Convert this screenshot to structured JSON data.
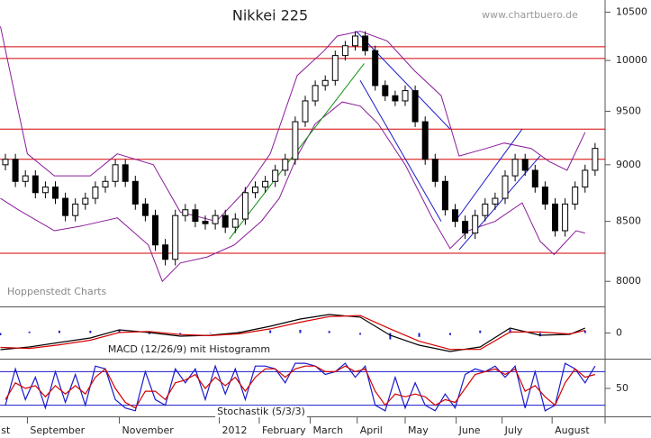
{
  "chart_data": [
    {
      "type": "candlestick",
      "title": "Nikkei 225",
      "annotations": {
        "source": "www.chartbuero.de",
        "credit": "Hoppenstedt Charts"
      },
      "x_labels": [
        {
          "value": -0.7,
          "label": "st"
        },
        {
          "value": 2.2,
          "label": "September"
        },
        {
          "value": 11.4,
          "label": "November"
        },
        {
          "value": 21.4,
          "label": "2012"
        },
        {
          "value": 25.4,
          "label": "February"
        },
        {
          "value": 30.5,
          "label": "March"
        },
        {
          "value": 35.2,
          "label": "April"
        },
        {
          "value": 40,
          "label": "May"
        },
        {
          "value": 45.1,
          "label": "June"
        },
        {
          "value": 49.7,
          "label": "July"
        },
        {
          "value": 54.7,
          "label": "August"
        }
      ],
      "open": [
        9000,
        9050,
        8850,
        8900,
        8750,
        8800,
        8700,
        8550,
        8650,
        8700,
        8800,
        8850,
        9000,
        8850,
        8650,
        8550,
        8300,
        8180,
        8550,
        8600,
        8500,
        8480,
        8550,
        8450,
        8520,
        8750,
        8800,
        8850,
        8950,
        9050,
        9400,
        9600,
        9750,
        9800,
        10050,
        10150,
        10250,
        10100,
        9750,
        9650,
        9600,
        9700,
        9400,
        9050,
        8850,
        8600,
        8500,
        8400,
        8550,
        8650,
        8700,
        8900,
        9050,
        8950,
        8800,
        8650,
        8420,
        8650,
        8800,
        8950
      ],
      "high": [
        9100,
        9100,
        8950,
        8950,
        8850,
        8850,
        8750,
        8700,
        8750,
        8850,
        8900,
        9050,
        9050,
        8900,
        8700,
        8600,
        8350,
        8600,
        8650,
        8650,
        8550,
        8600,
        8600,
        8570,
        8800,
        8850,
        8900,
        9000,
        9100,
        9450,
        9650,
        9800,
        9850,
        10100,
        10200,
        10300,
        10300,
        10150,
        9800,
        9700,
        9750,
        9750,
        9450,
        9100,
        8900,
        8650,
        8550,
        8600,
        8700,
        8750,
        8950,
        9100,
        9100,
        9000,
        8850,
        8700,
        8700,
        8850,
        9000,
        9200
      ],
      "low": [
        8950,
        8800,
        8800,
        8700,
        8700,
        8650,
        8500,
        8500,
        8600,
        8650,
        8750,
        8800,
        8800,
        8600,
        8500,
        8250,
        8130,
        8130,
        8500,
        8450,
        8430,
        8430,
        8400,
        8400,
        8470,
        8700,
        8750,
        8800,
        8900,
        9000,
        9350,
        9550,
        9700,
        9750,
        10000,
        10100,
        10050,
        9700,
        9600,
        9550,
        9550,
        9350,
        9000,
        8800,
        8550,
        8450,
        8350,
        8350,
        8500,
        8600,
        8650,
        8850,
        8900,
        8750,
        8600,
        8370,
        8370,
        8600,
        8750,
        8900
      ],
      "close": [
        9050,
        8850,
        8900,
        8750,
        8800,
        8700,
        8550,
        8650,
        8700,
        8800,
        8850,
        9000,
        8850,
        8650,
        8550,
        8300,
        8180,
        8550,
        8600,
        8500,
        8480,
        8550,
        8450,
        8520,
        8750,
        8800,
        8850,
        8950,
        9050,
        9400,
        9600,
        9750,
        9800,
        10050,
        10150,
        10250,
        10100,
        9750,
        9650,
        9600,
        9700,
        9400,
        9050,
        8850,
        8600,
        8500,
        8400,
        8550,
        8650,
        8700,
        8900,
        9050,
        8950,
        8800,
        8650,
        8420,
        8650,
        8800,
        8950,
        9150
      ],
      "ylim": [
        7800,
        10630
      ],
      "yticks": [
        8000,
        8500,
        9000,
        9500,
        10000,
        10500
      ],
      "log_scale": true,
      "hlines": {
        "color": "#d40000",
        "values": [
          10140,
          10020,
          9330,
          9050,
          8230
        ]
      },
      "bands": {
        "color": "#8a1c9a",
        "upper": {
          "x": [
            -0.5,
            2.2,
            4.9,
            8.5,
            11.2,
            14.8,
            17.5,
            21.1,
            23.8,
            26.5,
            29.2,
            31.9,
            33.2,
            35.5,
            38.2,
            40.9,
            43.6,
            45.4,
            48.1,
            49.9,
            52.6,
            54.4,
            56.2,
            58
          ],
          "values": [
            10350,
            9100,
            8900,
            8900,
            9100,
            9000,
            8580,
            8500,
            8750,
            9100,
            9850,
            10100,
            10250,
            10300,
            10200,
            9900,
            9650,
            9080,
            9150,
            9200,
            9150,
            9030,
            8950,
            9300
          ]
        },
        "lower": {
          "x": [
            -0.5,
            1.3,
            4.9,
            7.6,
            11.2,
            14.3,
            15.7,
            17.5,
            20.2,
            22.9,
            25.6,
            27.4,
            29.2,
            31,
            33.7,
            35.5,
            37.3,
            40,
            42.7,
            44.5,
            46.3,
            49,
            51.7,
            53.5,
            54.9,
            57.1,
            58
          ],
          "values": [
            8700,
            8600,
            8420,
            8460,
            8530,
            8300,
            8000,
            8150,
            8200,
            8300,
            8500,
            8700,
            9080,
            9380,
            9590,
            9550,
            9380,
            9000,
            8530,
            8270,
            8420,
            8500,
            8660,
            8330,
            8220,
            8420,
            8400
          ]
        }
      },
      "trend_lines": [
        {
          "color": "#1a1acc",
          "x": [
            35.1,
            44.5
          ],
          "values": [
            10300,
            9330
          ]
        },
        {
          "color": "#1a1acc",
          "x": [
            35.5,
            43.6
          ],
          "values": [
            9800,
            8500
          ]
        },
        {
          "color": "#1a1acc",
          "x": [
            45,
            51.7
          ],
          "values": [
            8500,
            9330
          ]
        },
        {
          "color": "#1a1acc",
          "x": [
            45.4,
            53.5
          ],
          "values": [
            8260,
            9080
          ]
        },
        {
          "color": "#109010",
          "x": [
            22.4,
            35.9
          ],
          "values": [
            8350,
            9970
          ]
        }
      ]
    },
    {
      "type": "macd",
      "title": "MACD (12/26/9) mit Histogramm",
      "x": [
        -0.5,
        2.4,
        5.4,
        8.5,
        11.4,
        14.4,
        17.5,
        20.5,
        23.4,
        26.5,
        29.5,
        32.4,
        35.5,
        38.5,
        41.4,
        44.5,
        47.5,
        50.5,
        53.5,
        56.5,
        58
      ],
      "series": [
        {
          "color": "#000000",
          "values": [
            -162,
            -136,
            -92,
            -48,
            31,
            4,
            -31,
            -22,
            4,
            66,
            136,
            180,
            154,
            -22,
            -118,
            -180,
            -136,
            48,
            -22,
            -13,
            48
          ]
        },
        {
          "color": "#d40000",
          "values": [
            -140,
            -150,
            -115,
            -70,
            5,
            15,
            -15,
            -25,
            -8,
            40,
            105,
            160,
            170,
            40,
            -80,
            -160,
            -160,
            10,
            10,
            -10,
            25
          ]
        }
      ],
      "histogram": {
        "color": "#1a1acc",
        "values": [
          -22,
          14,
          23,
          22,
          26,
          -11,
          -16,
          3,
          12,
          26,
          31,
          20,
          -16,
          -62,
          -38,
          -20,
          24,
          38,
          -32,
          -3,
          23
        ]
      },
      "ylim": [
        -250,
        250
      ],
      "yticks": [
        0
      ]
    },
    {
      "type": "line",
      "title": "Stochastik (5/3/3)",
      "x": [
        0,
        1,
        2,
        3,
        4,
        5,
        6,
        7,
        8,
        9,
        10,
        11,
        12,
        13,
        14,
        15,
        16,
        17,
        18,
        19,
        20,
        21,
        22,
        23,
        24,
        25,
        26,
        27,
        28,
        29,
        30,
        31,
        32,
        33,
        34,
        35,
        36,
        37,
        38,
        39,
        40,
        41,
        42,
        43,
        44,
        45,
        46,
        47,
        48,
        49,
        50,
        51,
        52,
        53,
        54,
        55,
        56,
        57,
        58,
        59
      ],
      "series": [
        {
          "color": "#1a1acc",
          "values": [
            20,
            85,
            30,
            70,
            15,
            80,
            25,
            75,
            20,
            90,
            85,
            30,
            15,
            10,
            80,
            30,
            20,
            85,
            60,
            85,
            30,
            90,
            40,
            85,
            30,
            90,
            90,
            85,
            60,
            95,
            95,
            90,
            75,
            80,
            95,
            70,
            90,
            20,
            10,
            70,
            15,
            60,
            20,
            10,
            40,
            15,
            75,
            85,
            80,
            90,
            70,
            90,
            15,
            80,
            10,
            20,
            95,
            85,
            60,
            90
          ]
        },
        {
          "color": "#d40000",
          "values": [
            30,
            60,
            50,
            55,
            35,
            55,
            40,
            55,
            40,
            70,
            85,
            50,
            25,
            15,
            45,
            45,
            30,
            60,
            65,
            75,
            50,
            70,
            55,
            70,
            45,
            70,
            85,
            85,
            70,
            85,
            90,
            90,
            80,
            80,
            90,
            80,
            85,
            45,
            20,
            40,
            35,
            40,
            35,
            20,
            30,
            25,
            50,
            75,
            80,
            85,
            75,
            85,
            45,
            55,
            35,
            20,
            60,
            85,
            70,
            75
          ]
        }
      ],
      "hlines": {
        "color": "#1a1acc",
        "values": [
          80,
          20
        ]
      },
      "ylim": [
        0,
        100
      ],
      "yticks": [
        50
      ]
    }
  ]
}
